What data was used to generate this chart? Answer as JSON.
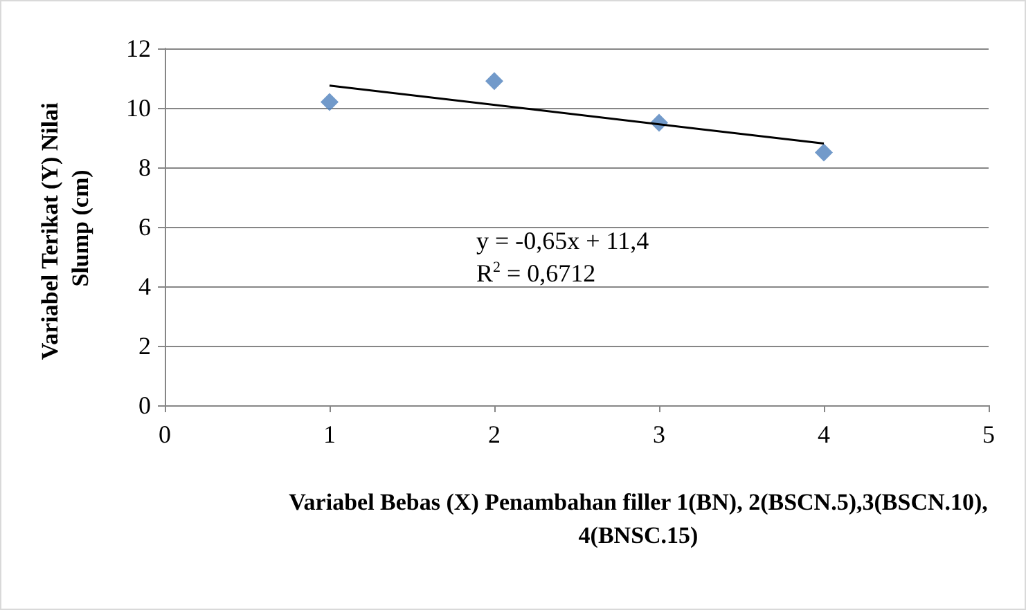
{
  "chart_data": {
    "type": "scatter",
    "xlabel": "Variabel Bebas (X) Penambahan filler 1(BN), 2(BSCN.5),3(BSCN.10),4(BNSC.15)",
    "ylabel": "Variabel Terikat (Y) Nilai Slump (cm)",
    "series": [
      {
        "color": "#4f81bd",
        "marker": "diamond",
        "x": [
          1,
          2,
          3,
          4
        ],
        "values": [
          10.2,
          10.9,
          9.5,
          8.5
        ]
      },
      {
        "type": "line",
        "color": "#000000",
        "marker": "none",
        "x": [
          1,
          4
        ],
        "values": [
          10.75,
          8.8
        ]
      }
    ],
    "xlim": [
      0,
      5
    ],
    "xticks": [
      0,
      1,
      2,
      3,
      4,
      5
    ],
    "ylim": [
      0,
      12
    ],
    "yticks": [
      0,
      2,
      4,
      6,
      8,
      10,
      12
    ],
    "grid": "y",
    "annotations": [
      "y = -0,65x + 11,4",
      "R$^{2}$ = 0,6712"
    ]
  }
}
